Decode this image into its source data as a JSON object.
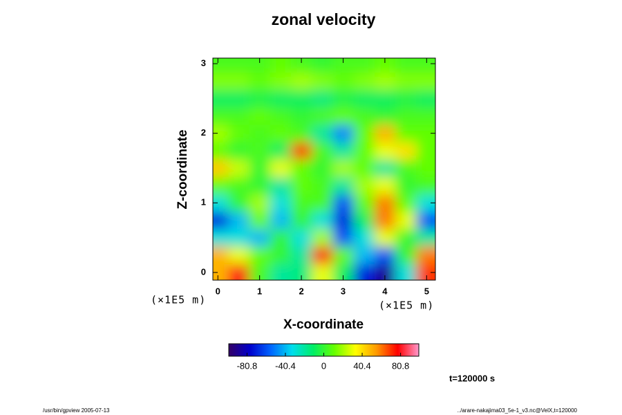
{
  "chart_data": {
    "type": "heatmap",
    "title": "zonal velocity",
    "xlabel": "X-coordinate",
    "ylabel": "Z-coordinate",
    "xunit": "(×1E5 m)",
    "yunit": "(×1E5 m)",
    "annotation": "t=120000 s",
    "footer_left": "/usr/bin/gpview 2005-07-13",
    "footer_right": "../arare-nakajima03_5e-1_v3.nc@VelX,t=120000",
    "xlim": [
      -0.12,
      5.21
    ],
    "ylim": [
      -0.11,
      3.08
    ],
    "xticks": [
      0,
      1,
      2,
      3,
      4,
      5
    ],
    "yticks": [
      0,
      1,
      2,
      3
    ],
    "clim": [
      -100,
      100
    ],
    "cticks": [
      -80.8,
      -40.4,
      0,
      40.4,
      80.8
    ],
    "colormap": [
      "#330066",
      "#0000cc",
      "#0066ff",
      "#00ddee",
      "#00ee66",
      "#66ff00",
      "#ffff00",
      "#ff9900",
      "#ff0000",
      "#ff99cc"
    ],
    "x": [
      0,
      0.5,
      1,
      1.5,
      2,
      2.5,
      3,
      3.5,
      4,
      4.5,
      5
    ],
    "y": [
      0,
      0.25,
      0.5,
      0.75,
      1,
      1.25,
      1.5,
      1.75,
      2,
      2.25,
      2.5,
      2.75,
      3
    ],
    "z": [
      [
        50,
        80,
        5,
        -20,
        -15,
        30,
        -10,
        -70,
        -90,
        -30,
        70
      ],
      [
        50,
        30,
        10,
        0,
        -20,
        80,
        10,
        -40,
        -60,
        0,
        60
      ],
      [
        -30,
        -30,
        -40,
        0,
        -30,
        20,
        -60,
        -30,
        30,
        0,
        -20
      ],
      [
        -70,
        -40,
        10,
        -40,
        0,
        -30,
        -70,
        -10,
        60,
        30,
        -60
      ],
      [
        -30,
        0,
        20,
        -30,
        5,
        5,
        -60,
        10,
        60,
        10,
        -30
      ],
      [
        10,
        5,
        0,
        -20,
        10,
        5,
        -20,
        20,
        30,
        0,
        5
      ],
      [
        45,
        25,
        0,
        30,
        10,
        0,
        20,
        10,
        -20,
        5,
        10
      ],
      [
        10,
        0,
        5,
        -10,
        70,
        5,
        -20,
        10,
        30,
        40,
        10
      ],
      [
        20,
        10,
        5,
        10,
        5,
        -20,
        -50,
        10,
        50,
        10,
        10
      ],
      [
        5,
        5,
        10,
        5,
        0,
        5,
        10,
        5,
        0,
        5,
        5
      ],
      [
        -10,
        -10,
        -5,
        -10,
        -10,
        -15,
        -5,
        -10,
        -10,
        -5,
        -10
      ],
      [
        15,
        15,
        10,
        15,
        20,
        15,
        10,
        15,
        20,
        15,
        15
      ],
      [
        5,
        5,
        5,
        10,
        5,
        0,
        5,
        5,
        10,
        5,
        5
      ]
    ]
  }
}
